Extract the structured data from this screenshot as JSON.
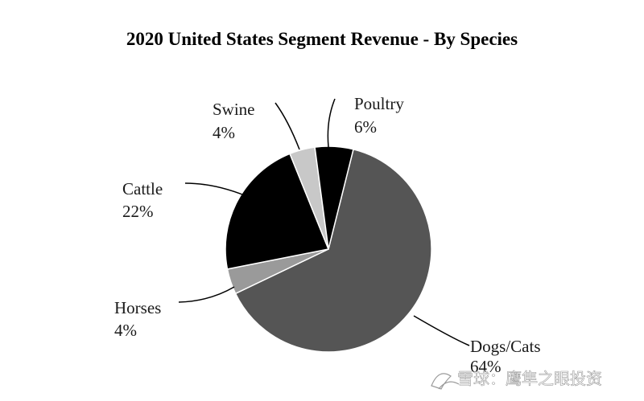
{
  "chart_data": {
    "type": "pie",
    "title": "2020 United States Segment Revenue - By Species",
    "slices": [
      {
        "label": "Dogs/Cats",
        "value": 64,
        "value_label": "64%",
        "color": "#555555"
      },
      {
        "label": "Horses",
        "value": 4,
        "value_label": "4%",
        "color": "#9a9a9a"
      },
      {
        "label": "Cattle",
        "value": 22,
        "value_label": "22%",
        "color": "#000000"
      },
      {
        "label": "Swine",
        "value": 4,
        "value_label": "4%",
        "color": "#c8c8c8"
      },
      {
        "label": "Poultry",
        "value": 6,
        "value_label": "6%",
        "color": "#000000"
      }
    ]
  },
  "watermark": {
    "text": "雪球：鹰隼之眼投资",
    "icon": "snowball-logo-icon"
  }
}
